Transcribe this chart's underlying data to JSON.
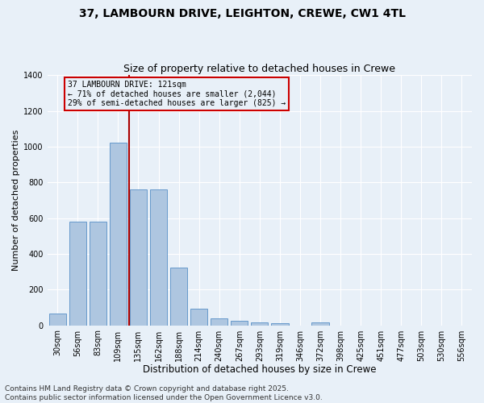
{
  "title_line1": "37, LAMBOURN DRIVE, LEIGHTON, CREWE, CW1 4TL",
  "title_line2": "Size of property relative to detached houses in Crewe",
  "xlabel": "Distribution of detached houses by size in Crewe",
  "ylabel": "Number of detached properties",
  "categories": [
    "30sqm",
    "56sqm",
    "83sqm",
    "109sqm",
    "135sqm",
    "162sqm",
    "188sqm",
    "214sqm",
    "240sqm",
    "267sqm",
    "293sqm",
    "319sqm",
    "346sqm",
    "372sqm",
    "398sqm",
    "425sqm",
    "451sqm",
    "477sqm",
    "503sqm",
    "530sqm",
    "556sqm"
  ],
  "values": [
    65,
    578,
    580,
    1020,
    760,
    760,
    325,
    93,
    40,
    25,
    18,
    13,
    0,
    14,
    0,
    0,
    0,
    0,
    0,
    0,
    0
  ],
  "bar_color": "#aec6e0",
  "bar_edge_color": "#6699cc",
  "vline_color": "#aa0000",
  "vline_x": 3.55,
  "annotation_text": "37 LAMBOURN DRIVE: 121sqm\n← 71% of detached houses are smaller (2,044)\n29% of semi-detached houses are larger (825) →",
  "annotation_box_color": "#cc0000",
  "ylim": [
    0,
    1400
  ],
  "yticks": [
    0,
    200,
    400,
    600,
    800,
    1000,
    1200,
    1400
  ],
  "background_color": "#e8f0f8",
  "grid_color": "#ffffff",
  "footnote": "Contains HM Land Registry data © Crown copyright and database right 2025.\nContains public sector information licensed under the Open Government Licence v3.0.",
  "title_fontsize": 10,
  "subtitle_fontsize": 9,
  "xlabel_fontsize": 8.5,
  "ylabel_fontsize": 8,
  "tick_fontsize": 7,
  "footnote_fontsize": 6.5
}
